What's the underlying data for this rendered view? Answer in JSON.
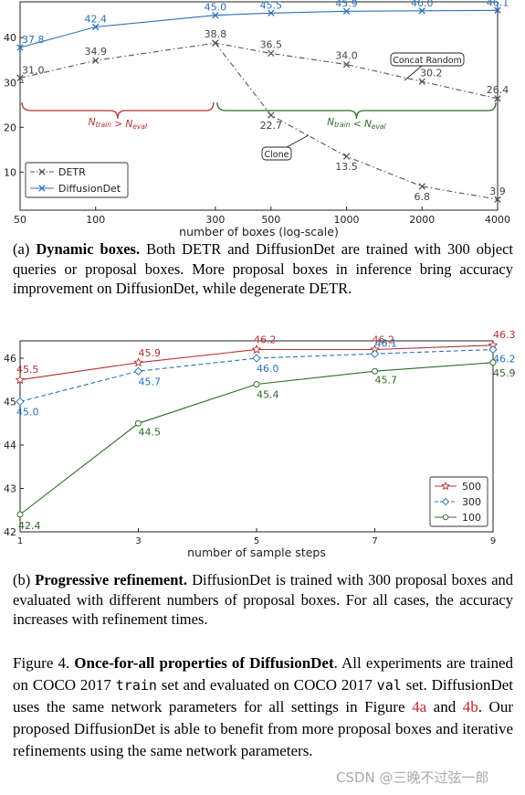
{
  "chart_data": [
    {
      "type": "line",
      "xlabel": "number of boxes (log-scale)",
      "ylabel": "",
      "x": [
        50,
        100,
        300,
        500,
        1000,
        2000,
        4000
      ],
      "x_scale": "log",
      "yticks": [
        10,
        20,
        30,
        40
      ],
      "ylim": [
        1.5,
        48
      ],
      "grid": false,
      "legend_position": "bottom-left",
      "series": [
        {
          "name": "DETR",
          "style": "dash-dot",
          "marker": "x",
          "color": "#555555",
          "values": [
            31.0,
            34.9,
            38.8,
            36.5,
            34.0,
            30.2,
            26.4
          ]
        },
        {
          "name": "DiffusionDet",
          "style": "solid",
          "marker": "x",
          "color": "#2b72b8",
          "values": [
            37.8,
            42.4,
            45.0,
            45.5,
            45.9,
            46.0,
            46.1
          ]
        },
        {
          "name": "Clone",
          "style": "dash-dot",
          "marker": "x",
          "color": "#555555",
          "values": [
            null,
            null,
            38.8,
            22.7,
            13.5,
            6.8,
            3.9
          ]
        }
      ],
      "data_labels": {
        "DiffusionDet": [
          "37.8",
          "42.4",
          "45.0",
          "45.5",
          "45.9",
          "46.0",
          "46.1"
        ],
        "DETR": [
          "31.0",
          "34.9",
          "38.8",
          "36.5",
          "34.0",
          "30.2",
          "26.4"
        ],
        "Clone": [
          "22.7",
          "13.5",
          "6.8",
          "3.9"
        ]
      },
      "annotations": {
        "concat_random": "Concat Random",
        "clone": "Clone",
        "left_region": "N<sub>train</sub> > N<sub>eval</sub>",
        "right_region": "N<sub>train</sub> < N<sub>eval</sub>"
      },
      "colors": {
        "left_region": "#b3312f",
        "right_region": "#2f6a2a"
      }
    },
    {
      "type": "line",
      "xlabel": "number of sample steps",
      "ylabel": "",
      "x": [
        1,
        3,
        5,
        7,
        9
      ],
      "yticks": [
        42,
        43,
        44,
        45,
        46
      ],
      "ylim": [
        42,
        46.4
      ],
      "grid": false,
      "legend_position": "bottom-right",
      "series": [
        {
          "name": "500",
          "style": "solid",
          "marker": "star",
          "color": "#b3312f",
          "values": [
            45.5,
            45.9,
            46.2,
            46.2,
            46.3
          ]
        },
        {
          "name": "300",
          "style": "dashed",
          "marker": "diamond",
          "color": "#2b72b8",
          "values": [
            45.0,
            45.7,
            46.0,
            46.1,
            46.2
          ]
        },
        {
          "name": "100",
          "style": "solid",
          "marker": "circle",
          "color": "#2f6a2a",
          "values": [
            42.4,
            44.5,
            45.4,
            45.7,
            45.9
          ]
        }
      ]
    }
  ],
  "caption_a": {
    "label": "(a)",
    "title": "Dynamic boxes.",
    "text": "Both DETR and DiffusionDet are trained with 300 object queries or proposal boxes. More proposal boxes in inference bring accuracy improvement on DiffusionDet, while degenerate DETR."
  },
  "caption_b": {
    "label": "(b)",
    "title": "Progressive refinement.",
    "text": "DiffusionDet is trained with 300 proposal boxes and evaluated with different numbers of proposal boxes. For all cases, the accuracy increases with refinement times."
  },
  "figure_caption": {
    "label": "Figure 4.",
    "title": "Once-for-all properties of DiffusionDet",
    "part1": ". All experiments are trained on COCO 2017 ",
    "code1": "train",
    "part2": " set and evaluated on COCO 2017 ",
    "code2": "val",
    "part3": " set. DiffusionDet uses the same network parameters for all settings in Figure ",
    "ref_a": "4a",
    "part4": " and ",
    "ref_b": "4b",
    "part5": ". Our proposed DiffusionDet is able to benefit from more proposal boxes and iterative refinements using the same network parameters."
  },
  "watermark": "CSDN @三晚不过弦一郎"
}
